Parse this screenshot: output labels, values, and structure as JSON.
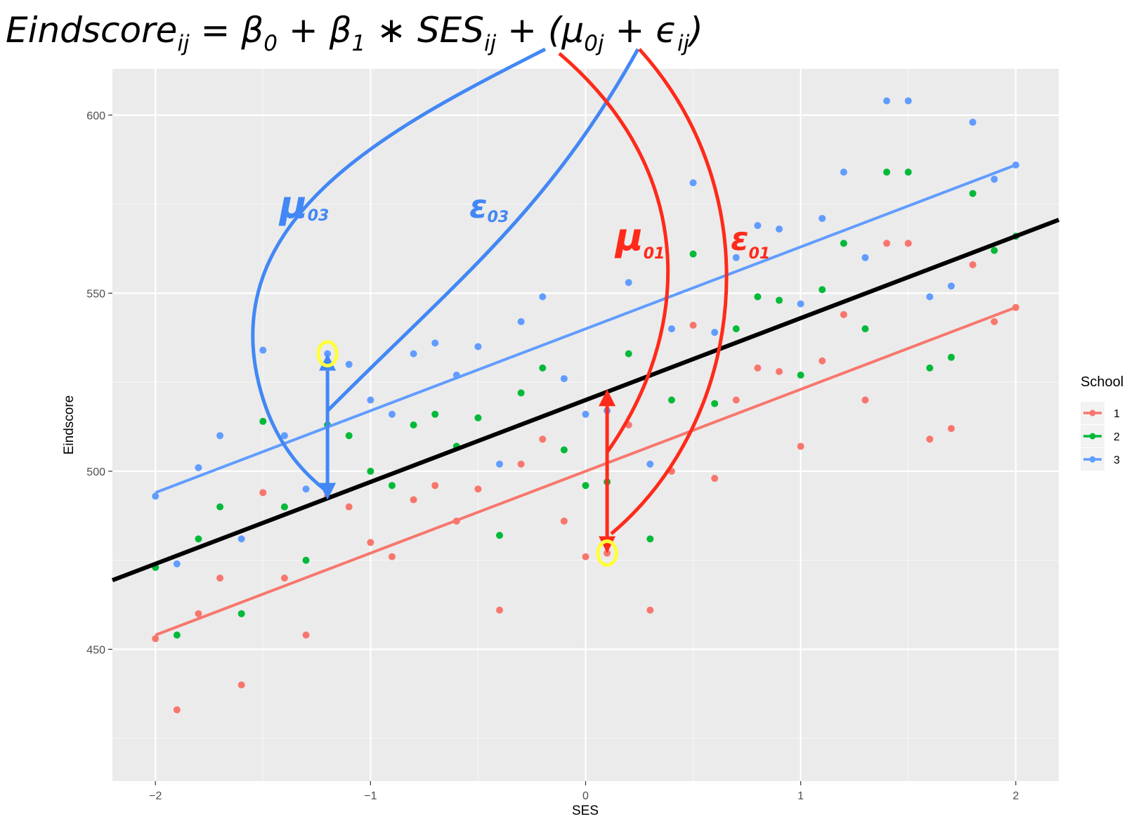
{
  "formula": {
    "main": "Eindscore",
    "ij1": "ij",
    "eq": " = β",
    "sub0": "0",
    "plus1": " + β",
    "sub1": "1",
    "ses": " ∗ SES",
    "ij2": "ij",
    "open": " + (μ",
    "sub0j": "0j",
    "plus2": " + ϵ",
    "ij3": "ij",
    "close": ")"
  },
  "annotations": {
    "mu03": {
      "base": "μ",
      "sub": "03",
      "color": "#4287f5"
    },
    "eps03": {
      "base": "ε",
      "sub": "03",
      "color": "#4287f5"
    },
    "mu01": {
      "base": "μ",
      "sub": "01",
      "color": "#ff2a1a"
    },
    "eps01": {
      "base": "ε",
      "sub": "01",
      "color": "#ff2a1a"
    }
  },
  "chart_data": {
    "type": "scatter",
    "xlabel": "SES",
    "ylabel": "Eindscore",
    "xlim": [
      -2.2,
      2.2
    ],
    "ylim": [
      413,
      613
    ],
    "x_ticks": [
      -2,
      -1,
      0,
      1,
      2
    ],
    "x_tick_labels": [
      "−2",
      "−1",
      "0",
      "1",
      "2"
    ],
    "y_ticks": [
      450,
      500,
      550,
      600
    ],
    "y_tick_labels": [
      "450",
      "500",
      "550",
      "600"
    ],
    "grid": true,
    "legend": {
      "title": "School",
      "placement": "right"
    },
    "colors": {
      "1": "#f8766d",
      "2": "#00ba38",
      "3": "#619cff",
      "fixed": "#000000"
    },
    "series": [
      {
        "name": "1",
        "points": [
          [
            -2,
            453
          ],
          [
            -1.9,
            433
          ],
          [
            -1.8,
            460
          ],
          [
            -1.7,
            470
          ],
          [
            -1.6,
            440
          ],
          [
            -1.5,
            494
          ],
          [
            -1.4,
            470
          ],
          [
            -1.3,
            454
          ],
          [
            -1.2,
            493
          ],
          [
            -1.1,
            490
          ],
          [
            -1,
            480
          ],
          [
            -0.9,
            476
          ],
          [
            -0.8,
            492
          ],
          [
            -0.7,
            496
          ],
          [
            -0.6,
            486
          ],
          [
            -0.5,
            495
          ],
          [
            -0.4,
            461
          ],
          [
            -0.3,
            502
          ],
          [
            -0.2,
            509
          ],
          [
            -0.1,
            486
          ],
          [
            0,
            476
          ],
          [
            0.1,
            477
          ],
          [
            0.2,
            513
          ],
          [
            0.3,
            461
          ],
          [
            0.4,
            500
          ],
          [
            0.5,
            541
          ],
          [
            0.6,
            498
          ],
          [
            0.7,
            520
          ],
          [
            0.8,
            529
          ],
          [
            0.9,
            528
          ],
          [
            1,
            507
          ],
          [
            1.1,
            531
          ],
          [
            1.2,
            544
          ],
          [
            1.3,
            520
          ],
          [
            1.4,
            564
          ],
          [
            1.5,
            564
          ],
          [
            1.6,
            509
          ],
          [
            1.7,
            512
          ],
          [
            1.8,
            558
          ],
          [
            1.9,
            542
          ],
          [
            2,
            546
          ]
        ],
        "line": {
          "intercept": 500,
          "slope": 23
        }
      },
      {
        "name": "2",
        "points": [
          [
            -2,
            473
          ],
          [
            -1.9,
            454
          ],
          [
            -1.8,
            481
          ],
          [
            -1.7,
            490
          ],
          [
            -1.6,
            460
          ],
          [
            -1.5,
            514
          ],
          [
            -1.4,
            490
          ],
          [
            -1.3,
            475
          ],
          [
            -1.2,
            513
          ],
          [
            -1.1,
            510
          ],
          [
            -1,
            500
          ],
          [
            -0.9,
            496
          ],
          [
            -0.8,
            513
          ],
          [
            -0.7,
            516
          ],
          [
            -0.6,
            507
          ],
          [
            -0.5,
            515
          ],
          [
            -0.4,
            482
          ],
          [
            -0.3,
            522
          ],
          [
            -0.2,
            529
          ],
          [
            -0.1,
            506
          ],
          [
            0,
            496
          ],
          [
            0.1,
            497
          ],
          [
            0.2,
            533
          ],
          [
            0.3,
            481
          ],
          [
            0.4,
            520
          ],
          [
            0.5,
            561
          ],
          [
            0.6,
            519
          ],
          [
            0.7,
            540
          ],
          [
            0.8,
            549
          ],
          [
            0.9,
            548
          ],
          [
            1,
            527
          ],
          [
            1.1,
            551
          ],
          [
            1.2,
            564
          ],
          [
            1.3,
            540
          ],
          [
            1.4,
            584
          ],
          [
            1.5,
            584
          ],
          [
            1.6,
            529
          ],
          [
            1.7,
            532
          ],
          [
            1.8,
            578
          ],
          [
            1.9,
            562
          ],
          [
            2,
            566
          ]
        ]
      },
      {
        "name": "3",
        "points": [
          [
            -2,
            493
          ],
          [
            -1.9,
            474
          ],
          [
            -1.8,
            501
          ],
          [
            -1.7,
            510
          ],
          [
            -1.6,
            481
          ],
          [
            -1.5,
            534
          ],
          [
            -1.4,
            510
          ],
          [
            -1.3,
            495
          ],
          [
            -1.2,
            533
          ],
          [
            -1.1,
            530
          ],
          [
            -1,
            520
          ],
          [
            -0.9,
            516
          ],
          [
            -0.8,
            533
          ],
          [
            -0.7,
            536
          ],
          [
            -0.6,
            527
          ],
          [
            -0.5,
            535
          ],
          [
            -0.4,
            502
          ],
          [
            -0.3,
            542
          ],
          [
            -0.2,
            549
          ],
          [
            -0.1,
            526
          ],
          [
            0,
            516
          ],
          [
            0.1,
            517
          ],
          [
            0.2,
            553
          ],
          [
            0.3,
            502
          ],
          [
            0.4,
            540
          ],
          [
            0.5,
            581
          ],
          [
            0.6,
            539
          ],
          [
            0.7,
            560
          ],
          [
            0.8,
            569
          ],
          [
            0.9,
            568
          ],
          [
            1,
            547
          ],
          [
            1.1,
            571
          ],
          [
            1.2,
            584
          ],
          [
            1.3,
            560
          ],
          [
            1.4,
            604
          ],
          [
            1.5,
            604
          ],
          [
            1.6,
            549
          ],
          [
            1.7,
            552
          ],
          [
            1.8,
            598
          ],
          [
            1.9,
            582
          ],
          [
            2,
            586
          ]
        ],
        "line": {
          "intercept": 540,
          "slope": 23
        }
      }
    ],
    "fixed_line": {
      "intercept": 520,
      "slope": 23,
      "x_range": [
        -2.2,
        2.2
      ]
    },
    "highlights": [
      [
        -1.2,
        533
      ],
      [
        0.1,
        477
      ]
    ],
    "arrows": [
      {
        "school": "3",
        "x": -1.2,
        "from": 513,
        "to": 533,
        "kind": "epsilon"
      },
      {
        "school": "3",
        "x": -1.2,
        "from": 513,
        "to": 492,
        "kind": "mu"
      },
      {
        "school": "1",
        "x": 0.1,
        "from": 502,
        "to": 523,
        "kind": "mu"
      },
      {
        "school": "1",
        "x": 0.1,
        "from": 502,
        "to": 477,
        "kind": "epsilon"
      }
    ]
  }
}
